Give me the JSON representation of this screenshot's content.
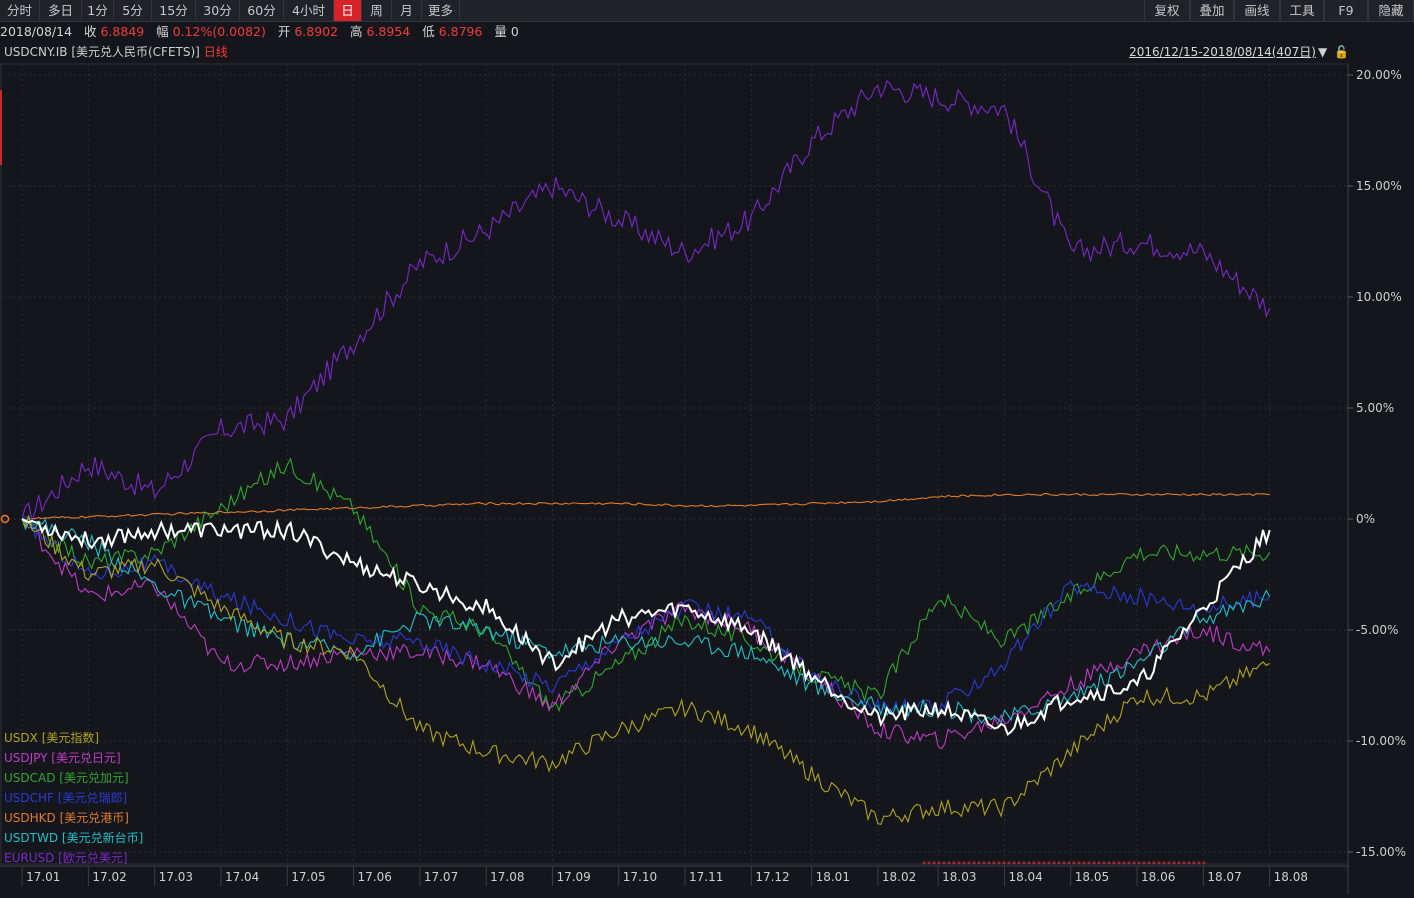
{
  "toolbar": {
    "left": [
      {
        "label": "分时"
      },
      {
        "label": "多日"
      },
      {
        "label": "1分"
      },
      {
        "label": "5分"
      },
      {
        "label": "15分"
      },
      {
        "label": "30分"
      },
      {
        "label": "60分"
      },
      {
        "label": "4小时"
      },
      {
        "label": "日",
        "active": true
      },
      {
        "label": "周"
      },
      {
        "label": "月"
      },
      {
        "label": "更多"
      }
    ],
    "right": [
      {
        "label": "复权"
      },
      {
        "label": "叠加"
      },
      {
        "label": "画线"
      },
      {
        "label": "工具"
      },
      {
        "label": "F9"
      },
      {
        "label": "隐藏"
      }
    ]
  },
  "info": {
    "date": "2018/08/14",
    "close_label": "收",
    "close": "6.8849",
    "change_label": "幅",
    "change": "0.12%(0.0082)",
    "open_label": "开",
    "open": "6.8902",
    "high_label": "高",
    "high": "6.8954",
    "low_label": "低",
    "low": "6.8796",
    "volume_label": "量",
    "volume": "0"
  },
  "symbol": {
    "code": "USDCNY.IB",
    "name": "[美元兑人民币(CFETS)]",
    "period": "日线",
    "range": "2016/12/15-2018/08/14(407日)"
  },
  "colors": {
    "USDCNY": "#ffffff",
    "USDX": "#b0a41c",
    "USDJPY": "#c03cc8",
    "USDCAD": "#2ea82e",
    "USDCHF": "#2a3ad8",
    "USDHKD": "#e07a2a",
    "USDTWD": "#1ec0c8",
    "EURUSD": "#7a28c8",
    "background": "#14161b",
    "grid": "#2a2d33",
    "up": "#f23a3a"
  },
  "chart_data": {
    "type": "line",
    "x": [
      "17.01",
      "17.02",
      "17.03",
      "17.04",
      "17.05",
      "17.06",
      "17.07",
      "17.08",
      "17.09",
      "17.10",
      "17.11",
      "17.12",
      "18.01",
      "18.02",
      "18.03",
      "18.04",
      "18.05",
      "18.06",
      "18.07",
      "18.08"
    ],
    "x_pos": [
      0.3,
      1.4,
      2.5,
      3.6,
      4.7,
      5.8,
      6.9,
      8.0,
      9.1,
      10.2,
      11.3,
      12.4,
      13.4,
      14.5,
      15.5,
      16.6,
      17.7,
      18.8,
      19.9,
      21.0
    ],
    "yticks": [
      "20.00%",
      "15.00%",
      "10.00%",
      "5.00%",
      "0%",
      "-5.00%",
      "-10.00%",
      "-15.00%"
    ],
    "ylim": [
      -15.0,
      20.0
    ],
    "series": [
      {
        "key": "EURUSD",
        "name": "EURUSD",
        "label": "[欧元兑美元]",
        "values": [
          0,
          2.5,
          1.2,
          4.0,
          4.5,
          8.0,
          11.5,
          13.0,
          15.0,
          13.5,
          12.0,
          13.5,
          17.0,
          19.5,
          19.0,
          18.5,
          12.0,
          12.5,
          12.0,
          9.5
        ]
      },
      {
        "key": "USDHKD",
        "name": "USDHKD",
        "label": "[美元兑港币]",
        "values": [
          0,
          0.1,
          0.2,
          0.3,
          0.4,
          0.5,
          0.6,
          0.7,
          0.7,
          0.7,
          0.6,
          0.6,
          0.7,
          0.8,
          1.0,
          1.1,
          1.1,
          1.1,
          1.1,
          1.1
        ]
      },
      {
        "key": "USDCAD",
        "name": "USDCAD",
        "label": "[美元兑加元]",
        "values": [
          0,
          -2.0,
          -1.5,
          0.5,
          2.5,
          0.5,
          -4.0,
          -5.0,
          -8.5,
          -6.5,
          -4.5,
          -5.5,
          -7.0,
          -8.0,
          -3.5,
          -5.5,
          -3.5,
          -1.5,
          -1.5,
          -1.5
        ]
      },
      {
        "key": "USDJPY",
        "name": "USDJPY",
        "label": "[美元兑日元]",
        "values": [
          0,
          -3.5,
          -3.0,
          -6.5,
          -6.5,
          -6.0,
          -6.0,
          -6.5,
          -8.5,
          -5.5,
          -4.0,
          -5.0,
          -7.0,
          -9.5,
          -10.0,
          -9.0,
          -7.5,
          -6.0,
          -5.0,
          -6.0
        ]
      },
      {
        "key": "USDCHF",
        "name": "USDCHF",
        "label": "[美元兑瑞郎]",
        "values": [
          0,
          -2.5,
          -2.0,
          -3.5,
          -4.5,
          -5.5,
          -5.5,
          -6.5,
          -7.5,
          -5.5,
          -4.0,
          -4.5,
          -7.0,
          -8.5,
          -8.5,
          -6.5,
          -3.0,
          -3.5,
          -4.0,
          -3.5
        ]
      },
      {
        "key": "USDTWD",
        "name": "USDTWD",
        "label": "[美元兑新台币]",
        "values": [
          0,
          -1.0,
          -3.0,
          -4.5,
          -5.5,
          -6.0,
          -4.5,
          -5.0,
          -6.0,
          -5.5,
          -5.5,
          -6.0,
          -7.5,
          -8.5,
          -8.5,
          -9.0,
          -8.0,
          -6.5,
          -4.5,
          -3.5
        ]
      },
      {
        "key": "USDX",
        "name": "USDX",
        "label": "[美元指数]",
        "values": [
          0,
          -2.5,
          -2.0,
          -4.0,
          -5.5,
          -6.0,
          -9.5,
          -10.5,
          -11.0,
          -9.5,
          -8.5,
          -9.5,
          -11.5,
          -13.5,
          -13.0,
          -13.0,
          -10.5,
          -8.0,
          -8.0,
          -6.5
        ]
      },
      {
        "key": "USDCNY",
        "name": "USDCNY",
        "label": "",
        "values": [
          0,
          -1.0,
          -0.5,
          -0.5,
          -0.5,
          -2.0,
          -3.0,
          -4.0,
          -6.5,
          -4.5,
          -4.0,
          -5.0,
          -7.0,
          -9.0,
          -8.5,
          -9.5,
          -8.0,
          -7.5,
          -4.0,
          -0.5
        ]
      }
    ],
    "legend_order": [
      "USDX",
      "USDJPY",
      "USDCAD",
      "USDCHF",
      "USDHKD",
      "USDTWD",
      "EURUSD"
    ],
    "grid": true,
    "legend_position": "bottom-left"
  }
}
